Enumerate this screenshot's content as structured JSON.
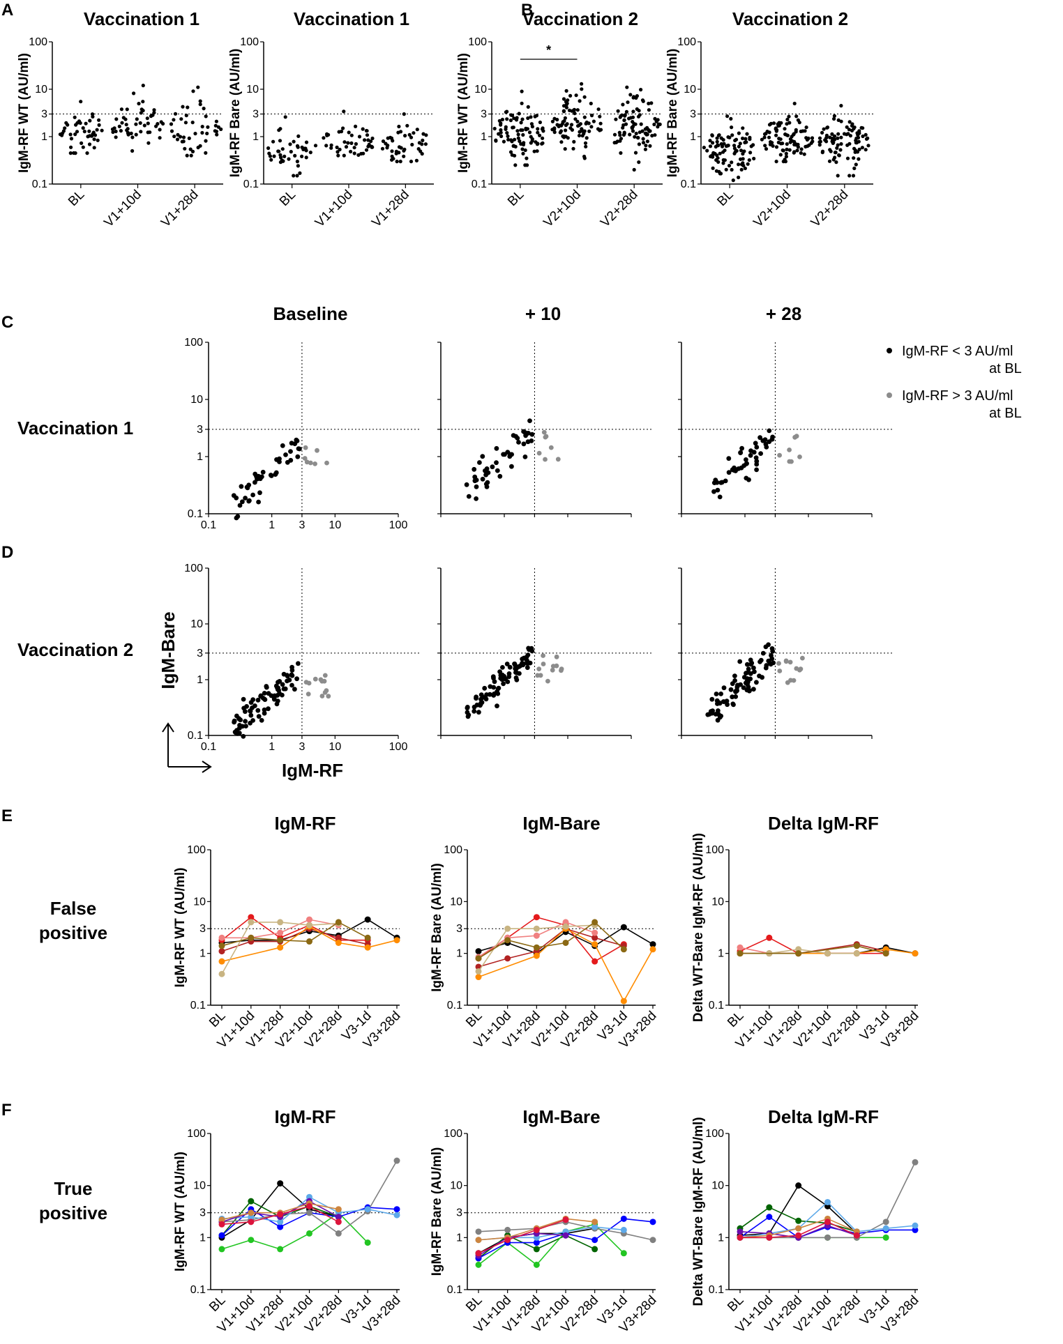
{
  "figure": {
    "panel_labels": [
      "A",
      "B",
      "C",
      "D",
      "E",
      "F"
    ],
    "legend": {
      "below": "IgM-RF < 3 AU/ml",
      "below2": "at BL",
      "above": "IgM-RF > 3 AU/ml",
      "above2": "at BL",
      "below_color": "#000000",
      "above_color": "#8c8c8c"
    },
    "axis_arrows": {
      "y": "IgM-Bare",
      "x": "IgM-RF"
    },
    "colors": {
      "threshold": "#000000",
      "point": "#000000",
      "grey": "#8c8c8c"
    }
  },
  "chart_data": [
    {
      "id": "A1",
      "type": "scatter",
      "panel": "A",
      "title": "Vaccination 1",
      "ylabel": "IgM-RF WT (AU/ml)",
      "yscale": "log",
      "ylim": [
        0.1,
        100
      ],
      "yticks": [
        "100",
        "10",
        "3",
        "1",
        "0.1"
      ],
      "categories": [
        "BL",
        "V1+10d",
        "V1+28d"
      ],
      "threshold": 3,
      "n_per_group": [
        45,
        50,
        45
      ],
      "median": [
        1.2,
        1.6,
        1.5
      ],
      "max": [
        5.5,
        12,
        11
      ],
      "min": [
        0.45,
        0.5,
        0.4
      ]
    },
    {
      "id": "A2",
      "type": "scatter",
      "panel": "A",
      "title": "Vaccination 1",
      "ylabel": "IgM-RF Bare (AU/ml)",
      "yscale": "log",
      "ylim": [
        0.1,
        100
      ],
      "yticks": [
        "100",
        "10",
        "3",
        "1",
        "0.1"
      ],
      "categories": [
        "BL",
        "V1+10d",
        "V1+28d"
      ],
      "threshold": 3,
      "n_per_group": [
        45,
        45,
        45
      ],
      "median": [
        0.5,
        0.8,
        0.7
      ],
      "max": [
        2.6,
        3.4,
        3.0
      ],
      "min": [
        0.15,
        0.4,
        0.3
      ]
    },
    {
      "id": "B1",
      "type": "scatter",
      "panel": "B",
      "title": "Vaccination 2",
      "ylabel": "IgM-RF WT (AU/ml)",
      "yscale": "log",
      "ylim": [
        0.1,
        100
      ],
      "yticks": [
        "100",
        "10",
        "3",
        "1",
        "0.1"
      ],
      "categories": [
        "BL",
        "V2+10d",
        "V2+28d"
      ],
      "threshold": 3,
      "n_per_group": [
        90,
        90,
        90
      ],
      "median": [
        1.2,
        2.0,
        1.8
      ],
      "max": [
        9,
        13,
        11
      ],
      "min": [
        0.25,
        0.35,
        0.2
      ],
      "significance": {
        "between": [
          "BL",
          "V2+10d"
        ],
        "label": "*"
      }
    },
    {
      "id": "B2",
      "type": "scatter",
      "panel": "B",
      "title": "Vaccination 2",
      "ylabel": "IgM-RF Bare (AU/ml)",
      "yscale": "log",
      "ylim": [
        0.1,
        100
      ],
      "yticks": [
        "100",
        "10",
        "3",
        "1",
        "0.1"
      ],
      "categories": [
        "BL",
        "V2+10d",
        "V2+28d"
      ],
      "threshold": 3,
      "n_per_group": [
        90,
        90,
        90
      ],
      "median": [
        0.5,
        0.9,
        0.75
      ],
      "max": [
        2.7,
        5,
        4.5
      ],
      "min": [
        0.12,
        0.3,
        0.15
      ]
    },
    {
      "id": "C1",
      "type": "scatter",
      "panel": "C",
      "row_label": "Vaccination 1",
      "title": "Baseline",
      "xscale": "log",
      "yscale": "log",
      "xlim": [
        0.1,
        100
      ],
      "ylim": [
        0.1,
        100
      ],
      "xticks": [
        "0.1",
        "1",
        "3",
        "10",
        "100"
      ],
      "yticks": [
        "100",
        "10",
        "3",
        "1",
        "0.1"
      ],
      "threshold": 3,
      "n_black": 45,
      "n_grey": 7
    },
    {
      "id": "C2",
      "type": "scatter",
      "panel": "C",
      "title": "+ 10",
      "xscale": "log",
      "yscale": "log",
      "xlim": [
        0.1,
        100
      ],
      "ylim": [
        0.1,
        100
      ],
      "threshold": 3,
      "n_black": 45,
      "n_grey": 7
    },
    {
      "id": "C3",
      "type": "scatter",
      "panel": "C",
      "title": "+ 28",
      "xscale": "log",
      "yscale": "log",
      "xlim": [
        0.1,
        100
      ],
      "ylim": [
        0.1,
        100
      ],
      "threshold": 3,
      "n_black": 45,
      "n_grey": 7
    },
    {
      "id": "D1",
      "type": "scatter",
      "panel": "D",
      "row_label": "Vaccination 2",
      "title": "",
      "xscale": "log",
      "yscale": "log",
      "xlim": [
        0.1,
        100
      ],
      "ylim": [
        0.1,
        100
      ],
      "xticks": [
        "0.1",
        "1",
        "3",
        "10",
        "100"
      ],
      "yticks": [
        "100",
        "10",
        "3",
        "1",
        "0.1"
      ],
      "threshold": 3,
      "n_black": 80,
      "n_grey": 12
    },
    {
      "id": "D2",
      "type": "scatter",
      "panel": "D",
      "title": "",
      "xscale": "log",
      "yscale": "log",
      "xlim": [
        0.1,
        100
      ],
      "ylim": [
        0.1,
        100
      ],
      "threshold": 3,
      "n_black": 80,
      "n_grey": 12
    },
    {
      "id": "D3",
      "type": "scatter",
      "panel": "D",
      "title": "",
      "xscale": "log",
      "yscale": "log",
      "xlim": [
        0.1,
        100
      ],
      "ylim": [
        0.1,
        100
      ],
      "threshold": 3,
      "n_black": 80,
      "n_grey": 12
    },
    {
      "id": "E1",
      "type": "line",
      "panel": "E",
      "row_label": [
        "False",
        "positive"
      ],
      "title": "IgM-RF",
      "ylabel": "IgM-RF WT (AU/ml)",
      "yscale": "log",
      "ylim": [
        0.1,
        100
      ],
      "yticks": [
        "100",
        "10",
        "3",
        "1",
        "0.1"
      ],
      "categories": [
        "BL",
        "V1+10d",
        "V1+28d",
        "V2+10d",
        "V2+28d",
        "V3-1d",
        "V3+28d"
      ],
      "threshold": 3,
      "series": [
        {
          "color": "#000000",
          "values": [
            1.6,
            1.8,
            1.8,
            2.7,
            2.2,
            4.5,
            2.0
          ]
        },
        {
          "color": "#e41a1c",
          "values": [
            1.8,
            5.0,
            2.0,
            3.5,
            1.8,
            1.8,
            null
          ]
        },
        {
          "color": "#b22222",
          "values": [
            1.1,
            1.7,
            1.7,
            3.0,
            2.0,
            1.5,
            null
          ]
        },
        {
          "color": "#f08080",
          "values": [
            2.0,
            2.0,
            2.5,
            4.5,
            3.5,
            null,
            null
          ]
        },
        {
          "color": "#ff8c00",
          "values": [
            0.7,
            null,
            1.3,
            3.3,
            1.6,
            1.3,
            1.8
          ]
        },
        {
          "color": "#c8b482",
          "values": [
            0.4,
            4.0,
            4.0,
            3.5,
            3.8,
            null,
            null
          ]
        },
        {
          "color": "#8b6914",
          "values": [
            1.4,
            2.0,
            1.8,
            1.7,
            4.0,
            2.0,
            null
          ]
        }
      ]
    },
    {
      "id": "E2",
      "type": "line",
      "panel": "E",
      "title": "IgM-Bare",
      "ylabel": "IgM-RF Bare (AU/ml)",
      "yscale": "log",
      "ylim": [
        0.1,
        100
      ],
      "yticks": [
        "100",
        "10",
        "3",
        "1",
        "0.1"
      ],
      "categories": [
        "BL",
        "V1+10d",
        "V1+28d",
        "V2+10d",
        "V2+28d",
        "V3-1d",
        "V3+28d"
      ],
      "threshold": 3,
      "series": [
        {
          "color": "#000000",
          "values": [
            1.1,
            1.6,
            1.0,
            2.6,
            1.4,
            3.2,
            1.5
          ]
        },
        {
          "color": "#e41a1c",
          "values": [
            0.8,
            2.0,
            5.0,
            3.5,
            0.7,
            1.5,
            null
          ]
        },
        {
          "color": "#b22222",
          "values": [
            0.55,
            0.8,
            1.1,
            3.0,
            2.0,
            1.4,
            null
          ]
        },
        {
          "color": "#f08080",
          "values": [
            0.85,
            2.0,
            2.2,
            4.0,
            2.5,
            null,
            null
          ]
        },
        {
          "color": "#ff8c00",
          "values": [
            0.35,
            null,
            0.9,
            3.0,
            1.5,
            0.12,
            1.2
          ]
        },
        {
          "color": "#c8b482",
          "values": [
            0.45,
            3.0,
            3.0,
            3.3,
            3.5,
            null,
            null
          ]
        },
        {
          "color": "#8b6914",
          "values": [
            0.8,
            1.8,
            1.3,
            1.6,
            4.0,
            1.2,
            null
          ]
        }
      ]
    },
    {
      "id": "E3",
      "type": "line",
      "panel": "E",
      "title": "Delta IgM-RF",
      "ylabel": "Delta WT-Bare IgM-RF (AU/ml)",
      "yscale": "log",
      "ylim": [
        0.1,
        100
      ],
      "yticks": [
        "100",
        "10",
        "1",
        "0.1"
      ],
      "categories": [
        "BL",
        "V1+10d",
        "V1+28d",
        "V2+10d",
        "V2+28d",
        "V3-1d",
        "V3+28d"
      ],
      "series": [
        {
          "color": "#000000",
          "values": [
            1.0,
            1.0,
            1.0,
            1.0,
            1.0,
            1.3,
            1.0
          ]
        },
        {
          "color": "#e41a1c",
          "values": [
            1.1,
            2.0,
            1.0,
            1.0,
            1.0,
            1.0,
            null
          ]
        },
        {
          "color": "#b22222",
          "values": [
            1.0,
            null,
            1.0,
            null,
            1.5,
            1.1,
            null
          ]
        },
        {
          "color": "#f08080",
          "values": [
            1.3,
            1.0,
            1.0,
            1.0,
            1.0,
            null,
            null
          ]
        },
        {
          "color": "#ff8c00",
          "values": [
            1.0,
            null,
            1.0,
            1.0,
            1.0,
            1.2,
            1.0
          ]
        },
        {
          "color": "#c8b482",
          "values": [
            1.0,
            1.0,
            1.2,
            1.0,
            1.0,
            null,
            null
          ]
        },
        {
          "color": "#8b6914",
          "values": [
            1.0,
            null,
            1.0,
            null,
            1.4,
            1.0,
            null
          ]
        }
      ]
    },
    {
      "id": "F1",
      "type": "line",
      "panel": "F",
      "row_label": [
        "True",
        "positive"
      ],
      "title": "IgM-RF",
      "ylabel": "IgM-RF WT (AU/ml)",
      "yscale": "log",
      "ylim": [
        0.1,
        100
      ],
      "yticks": [
        "100",
        "10",
        "3",
        "1",
        "0.1"
      ],
      "categories": [
        "BL",
        "V1+10d",
        "V1+28d",
        "V2+10d",
        "V2+28d",
        "V3-1d",
        "V3+28d"
      ],
      "threshold": 3,
      "series": [
        {
          "color": "#000000",
          "values": [
            1.0,
            2.2,
            11,
            3.5,
            2.5,
            null,
            null
          ]
        },
        {
          "color": "#006400",
          "values": [
            1.1,
            5.0,
            2.5,
            4.0,
            2.5,
            null,
            null
          ]
        },
        {
          "color": "#22c522",
          "values": [
            0.6,
            0.9,
            0.6,
            1.2,
            3.0,
            0.8,
            null
          ]
        },
        {
          "color": "#0000ff",
          "values": [
            1.1,
            3.5,
            1.6,
            3.0,
            2.5,
            3.8,
            3.5
          ]
        },
        {
          "color": "#808080",
          "values": [
            2.0,
            2.2,
            2.8,
            3.0,
            1.2,
            3.2,
            30
          ]
        },
        {
          "color": "#5da9e9",
          "values": [
            2.3,
            2.5,
            2.0,
            6.0,
            3.0,
            3.5,
            2.7
          ]
        },
        {
          "color": "#6a0dad",
          "values": [
            2.0,
            3.0,
            2.5,
            5.0,
            2.5,
            null,
            null
          ]
        },
        {
          "color": "#cd853f",
          "values": [
            2.2,
            3.0,
            3.0,
            4.5,
            3.5,
            null,
            null
          ]
        },
        {
          "color": "#dc143c",
          "values": [
            1.8,
            2.0,
            2.8,
            4.0,
            2.0,
            null,
            null
          ]
        }
      ]
    },
    {
      "id": "F2",
      "type": "line",
      "panel": "F",
      "title": "IgM-Bare",
      "ylabel": "IgM-RF Bare (AU/ml)",
      "yscale": "log",
      "ylim": [
        0.1,
        100
      ],
      "yticks": [
        "100",
        "10",
        "3",
        "1",
        "0.1"
      ],
      "categories": [
        "BL",
        "V1+10d",
        "V1+28d",
        "V2+10d",
        "V2+28d",
        "V3-1d",
        "V3+28d"
      ],
      "threshold": 3,
      "series": [
        {
          "color": "#000000",
          "values": [
            0.5,
            1.0,
            1.2,
            1.2,
            1.5,
            null,
            null
          ]
        },
        {
          "color": "#006400",
          "values": [
            0.4,
            1.1,
            0.6,
            1.1,
            0.6,
            null,
            null
          ]
        },
        {
          "color": "#22c522",
          "values": [
            0.3,
            0.8,
            0.3,
            1.3,
            1.8,
            0.5,
            null
          ]
        },
        {
          "color": "#0000ff",
          "values": [
            0.4,
            0.8,
            0.8,
            1.2,
            0.9,
            2.3,
            2.0
          ]
        },
        {
          "color": "#808080",
          "values": [
            1.3,
            1.4,
            1.5,
            2.0,
            1.5,
            1.2,
            0.9
          ]
        },
        {
          "color": "#5da9e9",
          "values": [
            0.9,
            1.0,
            1.0,
            1.3,
            1.6,
            1.4,
            null
          ]
        },
        {
          "color": "#6a0dad",
          "values": [
            0.45,
            1.0,
            1.2,
            1.1,
            null,
            null,
            null
          ]
        },
        {
          "color": "#cd853f",
          "values": [
            0.9,
            1.0,
            1.5,
            2.3,
            2.0,
            null,
            null
          ]
        },
        {
          "color": "#dc143c",
          "values": [
            0.5,
            0.9,
            1.4,
            2.2,
            null,
            null,
            null
          ]
        }
      ]
    },
    {
      "id": "F3",
      "type": "line",
      "panel": "F",
      "title": "Delta IgM-RF",
      "ylabel": "Delta WT-Bare IgM-RF (AU/ml)",
      "yscale": "log",
      "ylim": [
        0.1,
        100
      ],
      "yticks": [
        "100",
        "10",
        "1",
        "0.1"
      ],
      "categories": [
        "BL",
        "V1+10d",
        "V1+28d",
        "V2+10d",
        "V2+28d",
        "V3-1d",
        "V3+28d"
      ],
      "series": [
        {
          "color": "#000000",
          "values": [
            1.1,
            1.2,
            10,
            4.0,
            1.2,
            null,
            null
          ]
        },
        {
          "color": "#006400",
          "values": [
            1.5,
            3.8,
            2.1,
            1.9,
            1.3,
            null,
            null
          ]
        },
        {
          "color": "#22c522",
          "values": [
            1.0,
            1.0,
            1.0,
            1.0,
            1.0,
            1.0,
            null
          ]
        },
        {
          "color": "#0000ff",
          "values": [
            1.0,
            2.5,
            1.0,
            1.6,
            1.2,
            1.4,
            1.4
          ]
        },
        {
          "color": "#808080",
          "values": [
            1.0,
            1.0,
            1.0,
            1.0,
            1.0,
            2.0,
            28
          ]
        },
        {
          "color": "#5da9e9",
          "values": [
            1.0,
            1.2,
            1.5,
            4.8,
            1.3,
            1.5,
            1.7
          ]
        },
        {
          "color": "#6a0dad",
          "values": [
            1.3,
            1.2,
            1.0,
            1.7,
            1.1,
            null,
            null
          ]
        },
        {
          "color": "#cd853f",
          "values": [
            1.0,
            1.1,
            1.5,
            2.3,
            1.3,
            null,
            null
          ]
        },
        {
          "color": "#dc143c",
          "values": [
            1.0,
            1.0,
            1.1,
            2.0,
            1.1,
            null,
            null
          ]
        }
      ]
    }
  ]
}
